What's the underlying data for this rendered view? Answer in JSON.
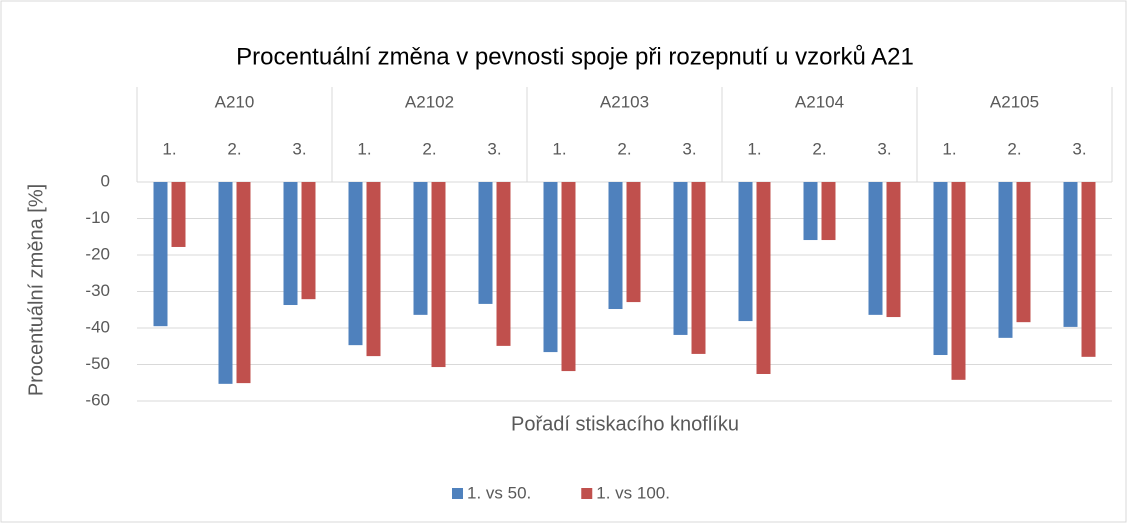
{
  "chart_data": {
    "type": "bar",
    "title": "Procentuální změna v pevnosti spoje při rozepnutí u vzorků A21",
    "x_label": "Pořadí stiskacího knoflíku",
    "y_label": "Procentuální změna [%]",
    "groups": [
      {
        "name": "A210",
        "categories": [
          "1.",
          "2.",
          "3."
        ]
      },
      {
        "name": "A2102",
        "categories": [
          "1.",
          "2.",
          "3."
        ]
      },
      {
        "name": "A2103",
        "categories": [
          "1.",
          "2.",
          "3."
        ]
      },
      {
        "name": "A2104",
        "categories": [
          "1.",
          "2.",
          "3."
        ]
      },
      {
        "name": "A2105",
        "categories": [
          "1.",
          "2.",
          "3."
        ]
      }
    ],
    "series": [
      {
        "name": "1. vs 50.",
        "color": "#4f81bd",
        "values": [
          -39.5,
          -55.3,
          -33.7,
          -44.7,
          -36.4,
          -33.4,
          -46.6,
          -34.8,
          -41.9,
          -38.1,
          -15.9,
          -36.4,
          -47.4,
          -42.7,
          -39.7
        ]
      },
      {
        "name": "1. vs 100.",
        "color": "#c0504d",
        "values": [
          -17.8,
          -55.1,
          -32.1,
          -47.7,
          -50.7,
          -44.9,
          -51.8,
          -32.9,
          -47.1,
          -52.6,
          -15.9,
          -37.0,
          -54.2,
          -38.4,
          -47.9
        ]
      }
    ],
    "ylim": [
      -60,
      0
    ],
    "yticks": [
      0,
      -10,
      -20,
      -30,
      -40,
      -50,
      -60
    ],
    "grid": true,
    "legend": "bottom"
  }
}
